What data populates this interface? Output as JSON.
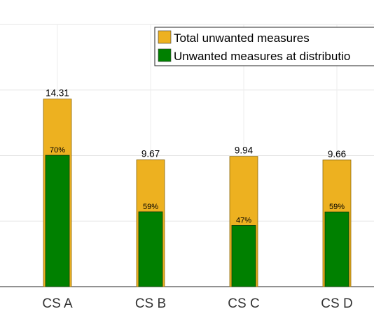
{
  "chart_data": {
    "type": "bar",
    "categories": [
      "CS A",
      "CS B",
      "CS C",
      "CS D"
    ],
    "series": [
      {
        "name": "Total unwanted measures",
        "values": [
          14.31,
          9.67,
          9.94,
          9.66
        ],
        "color": "#EDB120"
      },
      {
        "name": "Unwanted measures at distributio",
        "values": [
          10.02,
          5.71,
          4.67,
          5.7
        ],
        "color": "#008000"
      }
    ],
    "value_labels": [
      "14.31",
      "9.67",
      "9.94",
      "9.66"
    ],
    "percent_labels": [
      "70%",
      "59%",
      "47%",
      "59%"
    ],
    "ylim": [
      0,
      20
    ],
    "grid": true,
    "legend_position": "top-right"
  }
}
